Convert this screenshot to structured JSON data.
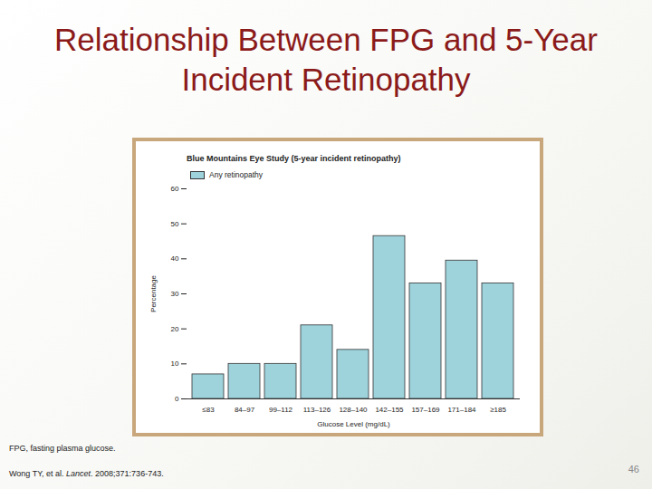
{
  "slide": {
    "title": "Relationship Between FPG and 5-Year Incident Retinopathy",
    "footnote": "FPG, fasting plasma glucose.",
    "citation": "Wong TY, et al. Lancet. 2008;371:736-743.",
    "page_number": "46"
  },
  "chart_data": {
    "type": "bar",
    "title": "Blue Mountains Eye Study (5-year incident retinopathy)",
    "x_label": "Glucose Level (mg/dL)",
    "y_label": "Percentage",
    "categories": [
      "≤83",
      "84–97",
      "99–112",
      "113–126",
      "128–140",
      "142–155",
      "157–169",
      "171–184",
      "≥185"
    ],
    "series": [
      {
        "name": "Any retinopathy",
        "color": "#9ed3dc",
        "values": [
          7,
          10,
          10,
          21,
          14,
          46.5,
          33,
          39.5,
          33
        ]
      }
    ],
    "ylim": [
      0,
      60
    ],
    "yticks": [
      0,
      10,
      20,
      30,
      40,
      50,
      60
    ],
    "grid": false,
    "legend": "top-left"
  }
}
